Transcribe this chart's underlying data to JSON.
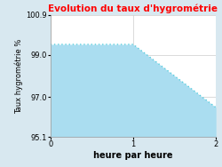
{
  "title": "Evolution du taux d'hygrométrie",
  "xlabel": "heure par heure",
  "ylabel": "Taux hygrométrie %",
  "x": [
    0,
    1,
    2
  ],
  "y": [
    99.5,
    99.5,
    96.5
  ],
  "ylim": [
    95.1,
    100.9
  ],
  "xlim": [
    0,
    2
  ],
  "yticks": [
    95.1,
    97.0,
    99.0,
    100.9
  ],
  "xticks": [
    0,
    1,
    2
  ],
  "line_color": "#55ccdd",
  "fill_color": "#aaddf0",
  "fill_alpha": 1.0,
  "bg_color": "#d8e8f0",
  "plot_bg_color": "#ffffff",
  "title_color": "#ff0000",
  "title_fontsize": 7.5,
  "axis_tick_fontsize": 6,
  "ylabel_fontsize": 6,
  "xlabel_fontsize": 7
}
